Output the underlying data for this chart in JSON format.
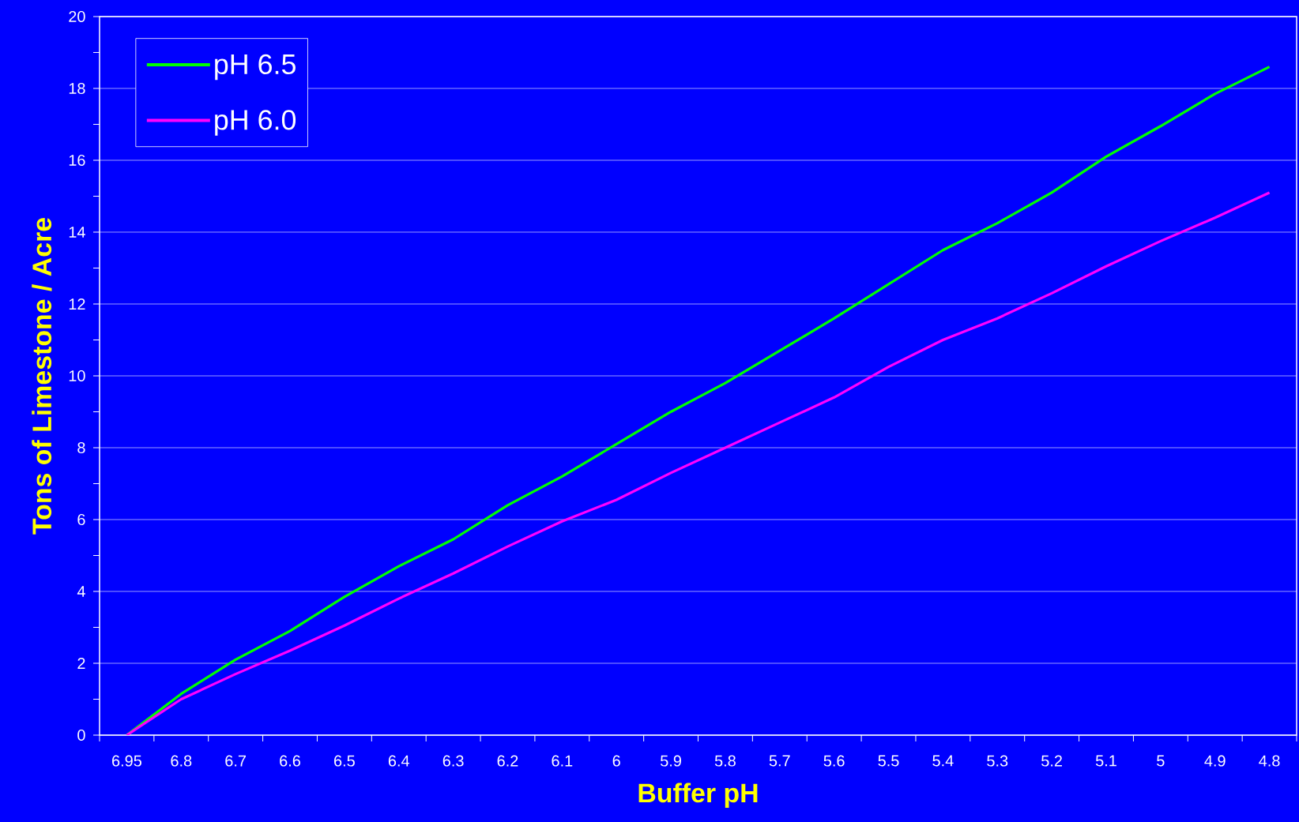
{
  "chart_data": {
    "type": "line",
    "xlabel": "Buffer  pH",
    "ylabel": "Tons of Limestone / Acre",
    "categories": [
      "6.95",
      "6.8",
      "6.7",
      "6.6",
      "6.5",
      "6.4",
      "6.3",
      "6.2",
      "6.1",
      "6",
      "5.9",
      "5.8",
      "5.7",
      "5.6",
      "5.5",
      "5.4",
      "5.3",
      "5.2",
      "5.1",
      "5",
      "4.9",
      "4.8"
    ],
    "series": [
      {
        "name": "pH 6.5",
        "color": "#00ff00",
        "values": [
          0,
          1.15,
          2.1,
          2.9,
          3.85,
          4.7,
          5.45,
          6.4,
          7.2,
          8.1,
          9.0,
          9.8,
          10.7,
          11.6,
          12.55,
          13.5,
          14.25,
          15.1,
          16.1,
          16.95,
          17.85,
          18.6
        ]
      },
      {
        "name": "pH 6.0",
        "color": "#ff00ff",
        "values": [
          0,
          1.0,
          1.7,
          2.35,
          3.05,
          3.8,
          4.5,
          5.25,
          5.95,
          6.55,
          7.3,
          8.0,
          8.7,
          9.4,
          10.25,
          11.0,
          11.6,
          12.3,
          13.05,
          13.75,
          14.4,
          15.1
        ]
      }
    ],
    "ylim": [
      0,
      20
    ],
    "yticks": [
      0,
      2,
      4,
      6,
      8,
      10,
      12,
      14,
      16,
      18,
      20
    ],
    "grid": "y",
    "legend": "top left",
    "marker": "none",
    "line_style": "solid"
  }
}
